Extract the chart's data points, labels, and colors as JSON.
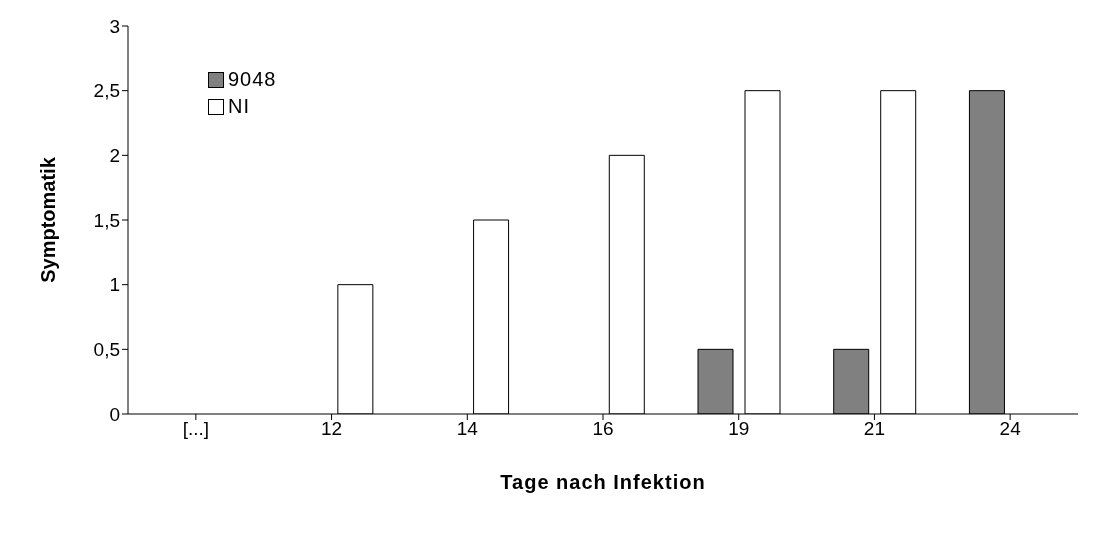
{
  "chart_data": {
    "type": "bar",
    "xlabel": "Tage nach Infektion",
    "ylabel": "Symptomatik",
    "categories": [
      "[...]",
      "12",
      "14",
      "16",
      "19",
      "21",
      "24"
    ],
    "series": [
      {
        "name": "9048",
        "color": "#808080",
        "values": [
          null,
          0,
          0,
          0,
          0.5,
          0.5,
          2.5
        ]
      },
      {
        "name": "NI",
        "color": "#ffffff",
        "values": [
          null,
          1,
          1.5,
          2,
          2.5,
          2.5,
          null
        ]
      }
    ],
    "ylim": [
      0,
      3
    ],
    "yticks": [
      0,
      {
        "value": 0.5,
        "label": "0,5"
      },
      1,
      {
        "value": 1.5,
        "label": "1,5"
      },
      2,
      {
        "value": 2.5,
        "label": "2,5"
      },
      3
    ],
    "legend": "top left"
  }
}
